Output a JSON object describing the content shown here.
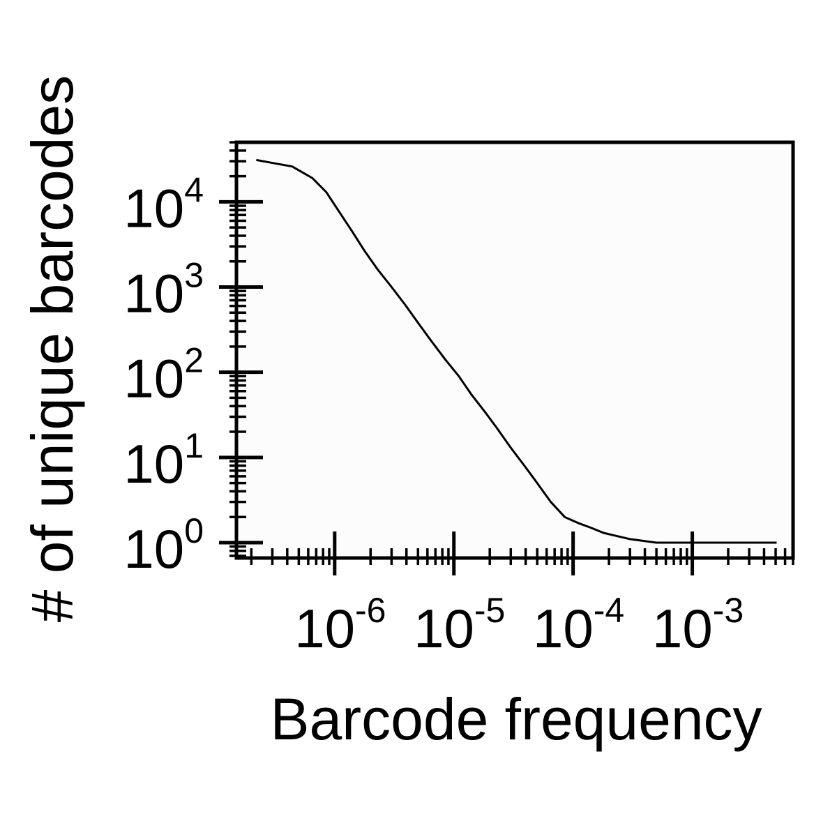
{
  "chart_data": {
    "type": "line",
    "title": "",
    "xlabel": "Barcode frequency",
    "ylabel": "# of unique barcodes",
    "x_scale": "log",
    "y_scale": "log",
    "xlim": [
      1.5e-07,
      0.007
    ],
    "ylim": [
      0.66,
      50000
    ],
    "x_ticks": [
      {
        "value": 1e-06,
        "base": "10",
        "exp": "-6"
      },
      {
        "value": 1e-05,
        "base": "10",
        "exp": "-5"
      },
      {
        "value": 0.0001,
        "base": "10",
        "exp": "-4"
      },
      {
        "value": 0.001,
        "base": "10",
        "exp": "-3"
      }
    ],
    "y_ticks": [
      {
        "value": 1,
        "base": "10",
        "exp": "0"
      },
      {
        "value": 10,
        "base": "10",
        "exp": "1"
      },
      {
        "value": 100,
        "base": "10",
        "exp": "2"
      },
      {
        "value": 1000,
        "base": "10",
        "exp": "3"
      },
      {
        "value": 10000,
        "base": "10",
        "exp": "4"
      }
    ],
    "grid": false,
    "legend": "none",
    "series": [
      {
        "color": "#000000",
        "x": [
          2.2e-07,
          4.4e-07,
          6.5e-07,
          8.5e-07,
          1.1e-06,
          1.4e-06,
          1.8e-06,
          2.3e-06,
          3e-06,
          3.9e-06,
          5e-06,
          6.5e-06,
          8.5e-06,
          1.1e-05,
          1.4e-05,
          1.8e-05,
          2.3e-05,
          3e-05,
          3.9e-05,
          5e-05,
          6.5e-05,
          8.5e-05,
          0.00011,
          0.00014,
          0.00018,
          0.00023,
          0.0003,
          0.0005,
          0.001,
          0.002,
          0.0051
        ],
        "y": [
          31000,
          26000,
          19000,
          13000,
          7500,
          4500,
          2600,
          1600,
          1000,
          620,
          380,
          230,
          140,
          90,
          55,
          35,
          22,
          13,
          8,
          5,
          3,
          2,
          1.7,
          1.5,
          1.3,
          1.2,
          1.1,
          1,
          1,
          1,
          1
        ]
      }
    ]
  }
}
